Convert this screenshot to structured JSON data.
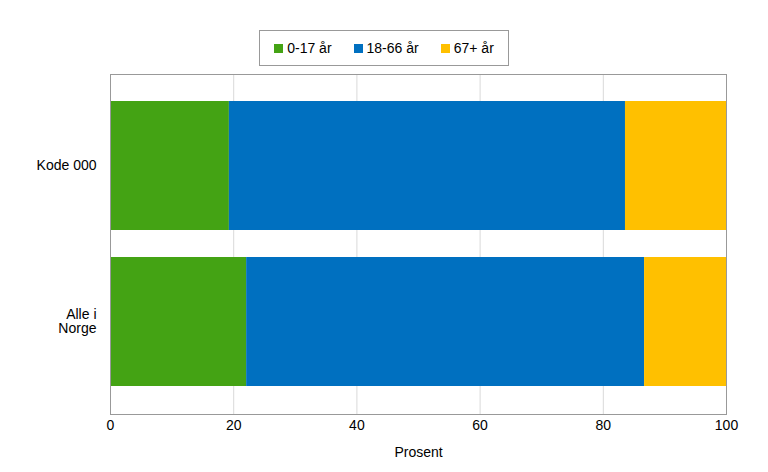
{
  "chart_data": {
    "type": "bar",
    "orientation": "horizontal",
    "stacked": true,
    "categories": [
      "Kode 000",
      "Alle i Norge"
    ],
    "series": [
      {
        "name": "0-17 år",
        "color": "#44a314",
        "values": [
          19.3,
          22.1
        ]
      },
      {
        "name": "18-66 år",
        "color": "#0070c0",
        "values": [
          64.3,
          64.6
        ]
      },
      {
        "name": "67+ år",
        "color": "#ffc000",
        "values": [
          16.4,
          13.3
        ]
      }
    ],
    "x_label": "Prosent",
    "xlim": [
      0,
      100
    ],
    "xticks": [
      0,
      20,
      40,
      60,
      80,
      100
    ],
    "grid": true,
    "legend": "top"
  }
}
